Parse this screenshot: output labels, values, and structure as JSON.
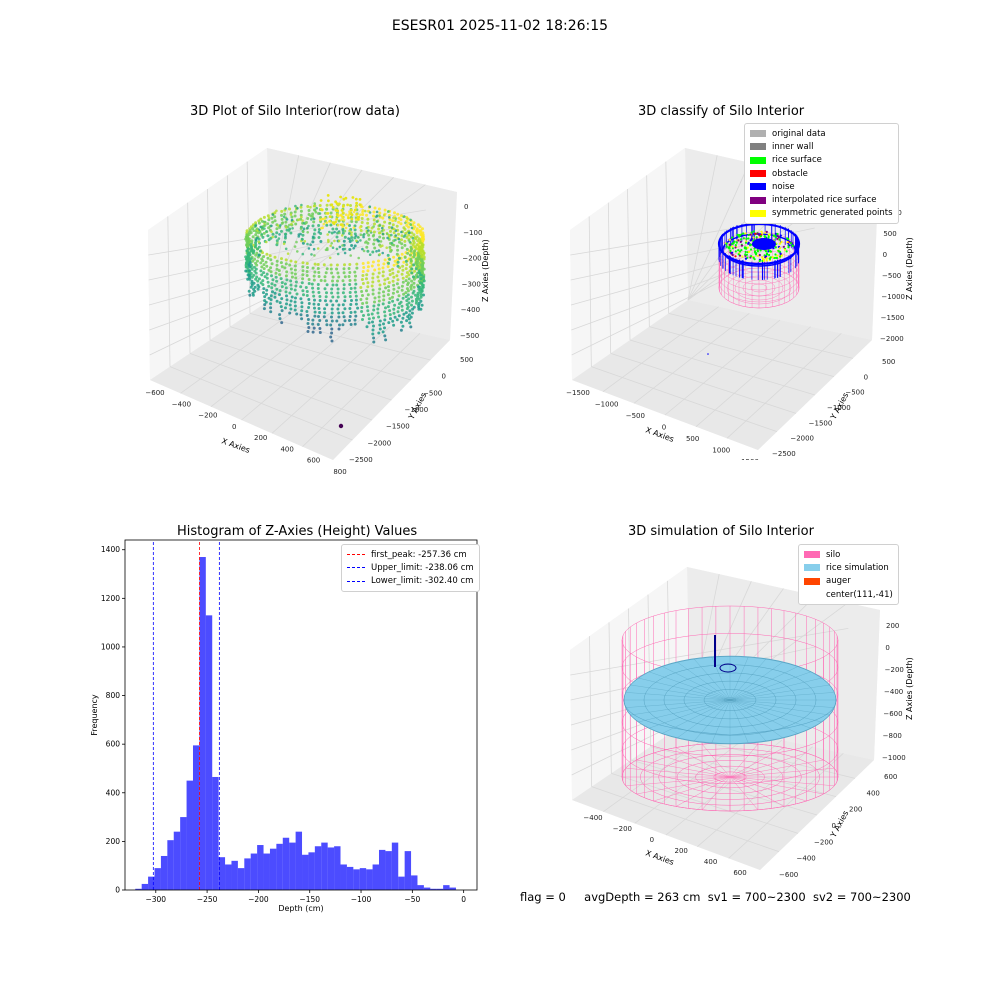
{
  "suptitle": "ESESR01 2025-11-02 18:26:15",
  "panels": {
    "raw": {
      "title": "3D Plot of Silo Interior(row data)",
      "xlabel": "X Axies",
      "ylabel": "Y Axies",
      "zlabel": "Z Axies (Depth)",
      "xticks": [
        "−600",
        "−400",
        "−200",
        "0",
        "200",
        "400",
        "600",
        "800"
      ],
      "yticks": [
        "500",
        "0",
        "−500",
        "−1000",
        "−1500",
        "−2000",
        "−2500"
      ],
      "zticks": [
        "0",
        "−100",
        "−200",
        "−300",
        "−400",
        "−500"
      ]
    },
    "classify": {
      "title": "3D classify of Silo Interior",
      "xlabel": "X Axies",
      "ylabel": "Y Axies",
      "zlabel": "Z Axies (Depth)",
      "xticks": [
        "−1500",
        "−1000",
        "−500",
        "0",
        "500",
        "1000",
        "1500"
      ],
      "yticks": [
        "500",
        "0",
        "−500",
        "−1000",
        "−1500",
        "−2000",
        "−2500"
      ],
      "zticks": [
        "1000",
        "500",
        "0",
        "−500",
        "−1000",
        "−1500",
        "−2000"
      ],
      "legend": [
        {
          "label": "original data",
          "color": "#b0b0b0"
        },
        {
          "label": "inner wall",
          "color": "#808080"
        },
        {
          "label": "rice surface",
          "color": "#00ff00"
        },
        {
          "label": "obstacle",
          "color": "#ff0000"
        },
        {
          "label": "noise",
          "color": "#0000ff"
        },
        {
          "label": "interpolated rice surface",
          "color": "#800080"
        },
        {
          "label": "symmetric generated points",
          "color": "#ffff00"
        }
      ]
    },
    "simulation": {
      "title": "3D simulation of Silo Interior",
      "xlabel": "X Axies",
      "ylabel": "Y Axies",
      "zlabel": "Z Axies (Depth)",
      "xticks": [
        "−400",
        "−200",
        "0",
        "200",
        "400",
        "600"
      ],
      "yticks": [
        "600",
        "400",
        "200",
        "0",
        "−200",
        "−400",
        "−600"
      ],
      "zticks": [
        "200",
        "0",
        "−200",
        "−400",
        "−600",
        "−800",
        "−1000"
      ],
      "legend": [
        {
          "label": "silo",
          "color": "#ff69b4"
        },
        {
          "label": "rice simulation",
          "color": "#87ceeb"
        },
        {
          "label": "auger",
          "color": "#ff4500"
        },
        {
          "label": "center(111,-41)",
          "color": ""
        }
      ]
    }
  },
  "chart_data": {
    "type": "bar",
    "title": "Histogram of Z-Axies (Height) Values",
    "xlabel": "Depth (cm)",
    "ylabel": "Frequency",
    "xlim": [
      -330,
      13
    ],
    "ylim": [
      0,
      1440
    ],
    "xticks": [
      -300,
      -250,
      -200,
      -150,
      -100,
      -50,
      0
    ],
    "yticks": [
      0,
      200,
      400,
      600,
      800,
      1000,
      1200,
      1400
    ],
    "bar_color": "#0000ff",
    "bin_width": 6.25,
    "bin_start": -320,
    "values": [
      5,
      25,
      55,
      90,
      140,
      205,
      240,
      300,
      450,
      595,
      1370,
      1130,
      465,
      135,
      105,
      120,
      90,
      130,
      150,
      185,
      150,
      170,
      190,
      215,
      195,
      240,
      145,
      155,
      180,
      195,
      175,
      180,
      105,
      95,
      85,
      90,
      85,
      105,
      165,
      160,
      195,
      55,
      160,
      60,
      20,
      10,
      5,
      5,
      20,
      10
    ],
    "vlines": [
      {
        "label": "first_peak: -257.36 cm",
        "x": -257.36,
        "color": "#ff0000"
      },
      {
        "label": "Upper_limit: -238.06 cm",
        "x": -238.06,
        "color": "#0000ff"
      },
      {
        "label": "Lower_limit: -302.40 cm",
        "x": -302.4,
        "color": "#0000ff"
      }
    ],
    "legend_position": "upper right"
  },
  "footer": {
    "flag": "flag = 0",
    "avg_depth": "avgDepth = 263 cm",
    "sv1": "sv1 = 700~2300",
    "sv2": "sv2 = 700~2300"
  }
}
